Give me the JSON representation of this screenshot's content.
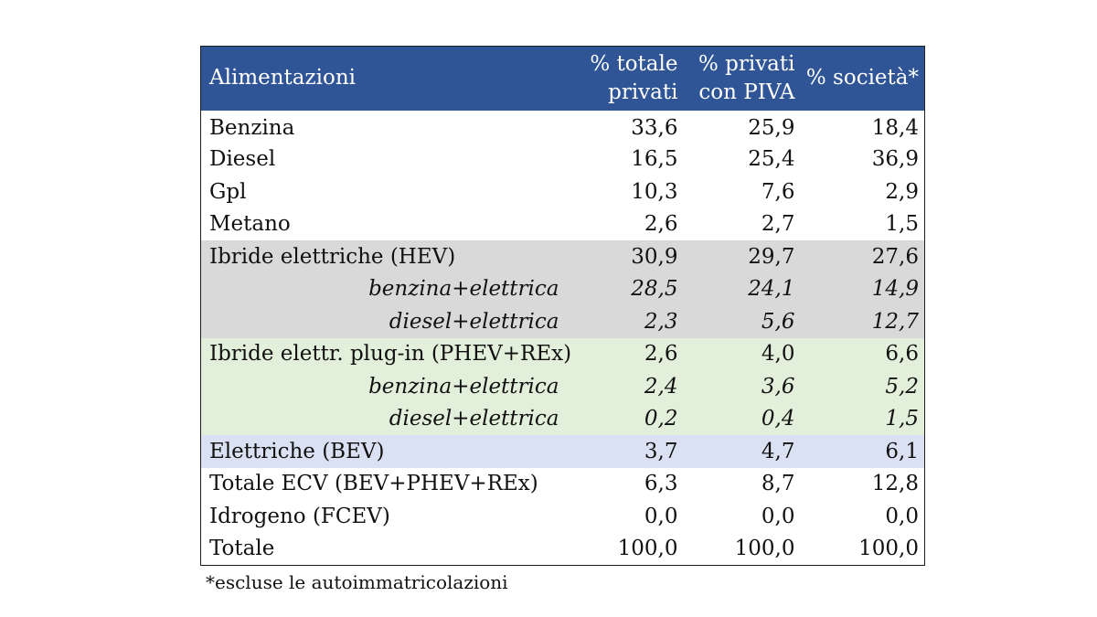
{
  "table": {
    "headers": {
      "label": "Alimentazioni",
      "col1": [
        "% totale",
        "privati"
      ],
      "col2": [
        "% privati",
        "con PIVA"
      ],
      "col3": "% società*"
    },
    "rows": [
      {
        "label": "Benzina",
        "v1": "33,6",
        "v2": "25,9",
        "v3": "18,4"
      },
      {
        "label": "Diesel",
        "v1": "16,5",
        "v2": "25,4",
        "v3": "36,9"
      },
      {
        "label": "Gpl",
        "v1": "10,3",
        "v2": "7,6",
        "v3": "2,9"
      },
      {
        "label": "Metano",
        "v1": "2,6",
        "v2": "2,7",
        "v3": "1,5"
      },
      {
        "label": "Ibride elettriche (HEV)",
        "v1": "30,9",
        "v2": "29,7",
        "v3": "27,6"
      },
      {
        "label": "benzina+elettrica",
        "v1": "28,5",
        "v2": "24,1",
        "v3": "14,9"
      },
      {
        "label": "diesel+elettrica",
        "v1": "2,3",
        "v2": "5,6",
        "v3": "12,7"
      },
      {
        "label": "Ibride elettr. plug-in (PHEV+REx)",
        "v1": "2,6",
        "v2": "4,0",
        "v3": "6,6"
      },
      {
        "label": "benzina+elettrica",
        "v1": "2,4",
        "v2": "3,6",
        "v3": "5,2"
      },
      {
        "label": "diesel+elettrica",
        "v1": "0,2",
        "v2": "0,4",
        "v3": "1,5"
      },
      {
        "label": "Elettriche (BEV)",
        "v1": "3,7",
        "v2": "4,7",
        "v3": "6,1"
      },
      {
        "label": "Totale ECV (BEV+PHEV+REx)",
        "v1": "6,3",
        "v2": "8,7",
        "v3": "12,8"
      },
      {
        "label": "Idrogeno (FCEV)",
        "v1": "0,0",
        "v2": "0,0",
        "v3": "0,0"
      },
      {
        "label": "Totale",
        "v1": "100,0",
        "v2": "100,0",
        "v3": "100,0"
      }
    ]
  },
  "footnote": "*escluse le autoimmatricolazioni",
  "colors": {
    "header_bg": "#2f5597",
    "hev_bg": "#d9d9d9",
    "phev_bg": "#e2efda",
    "bev_bg": "#d9e1f2"
  }
}
